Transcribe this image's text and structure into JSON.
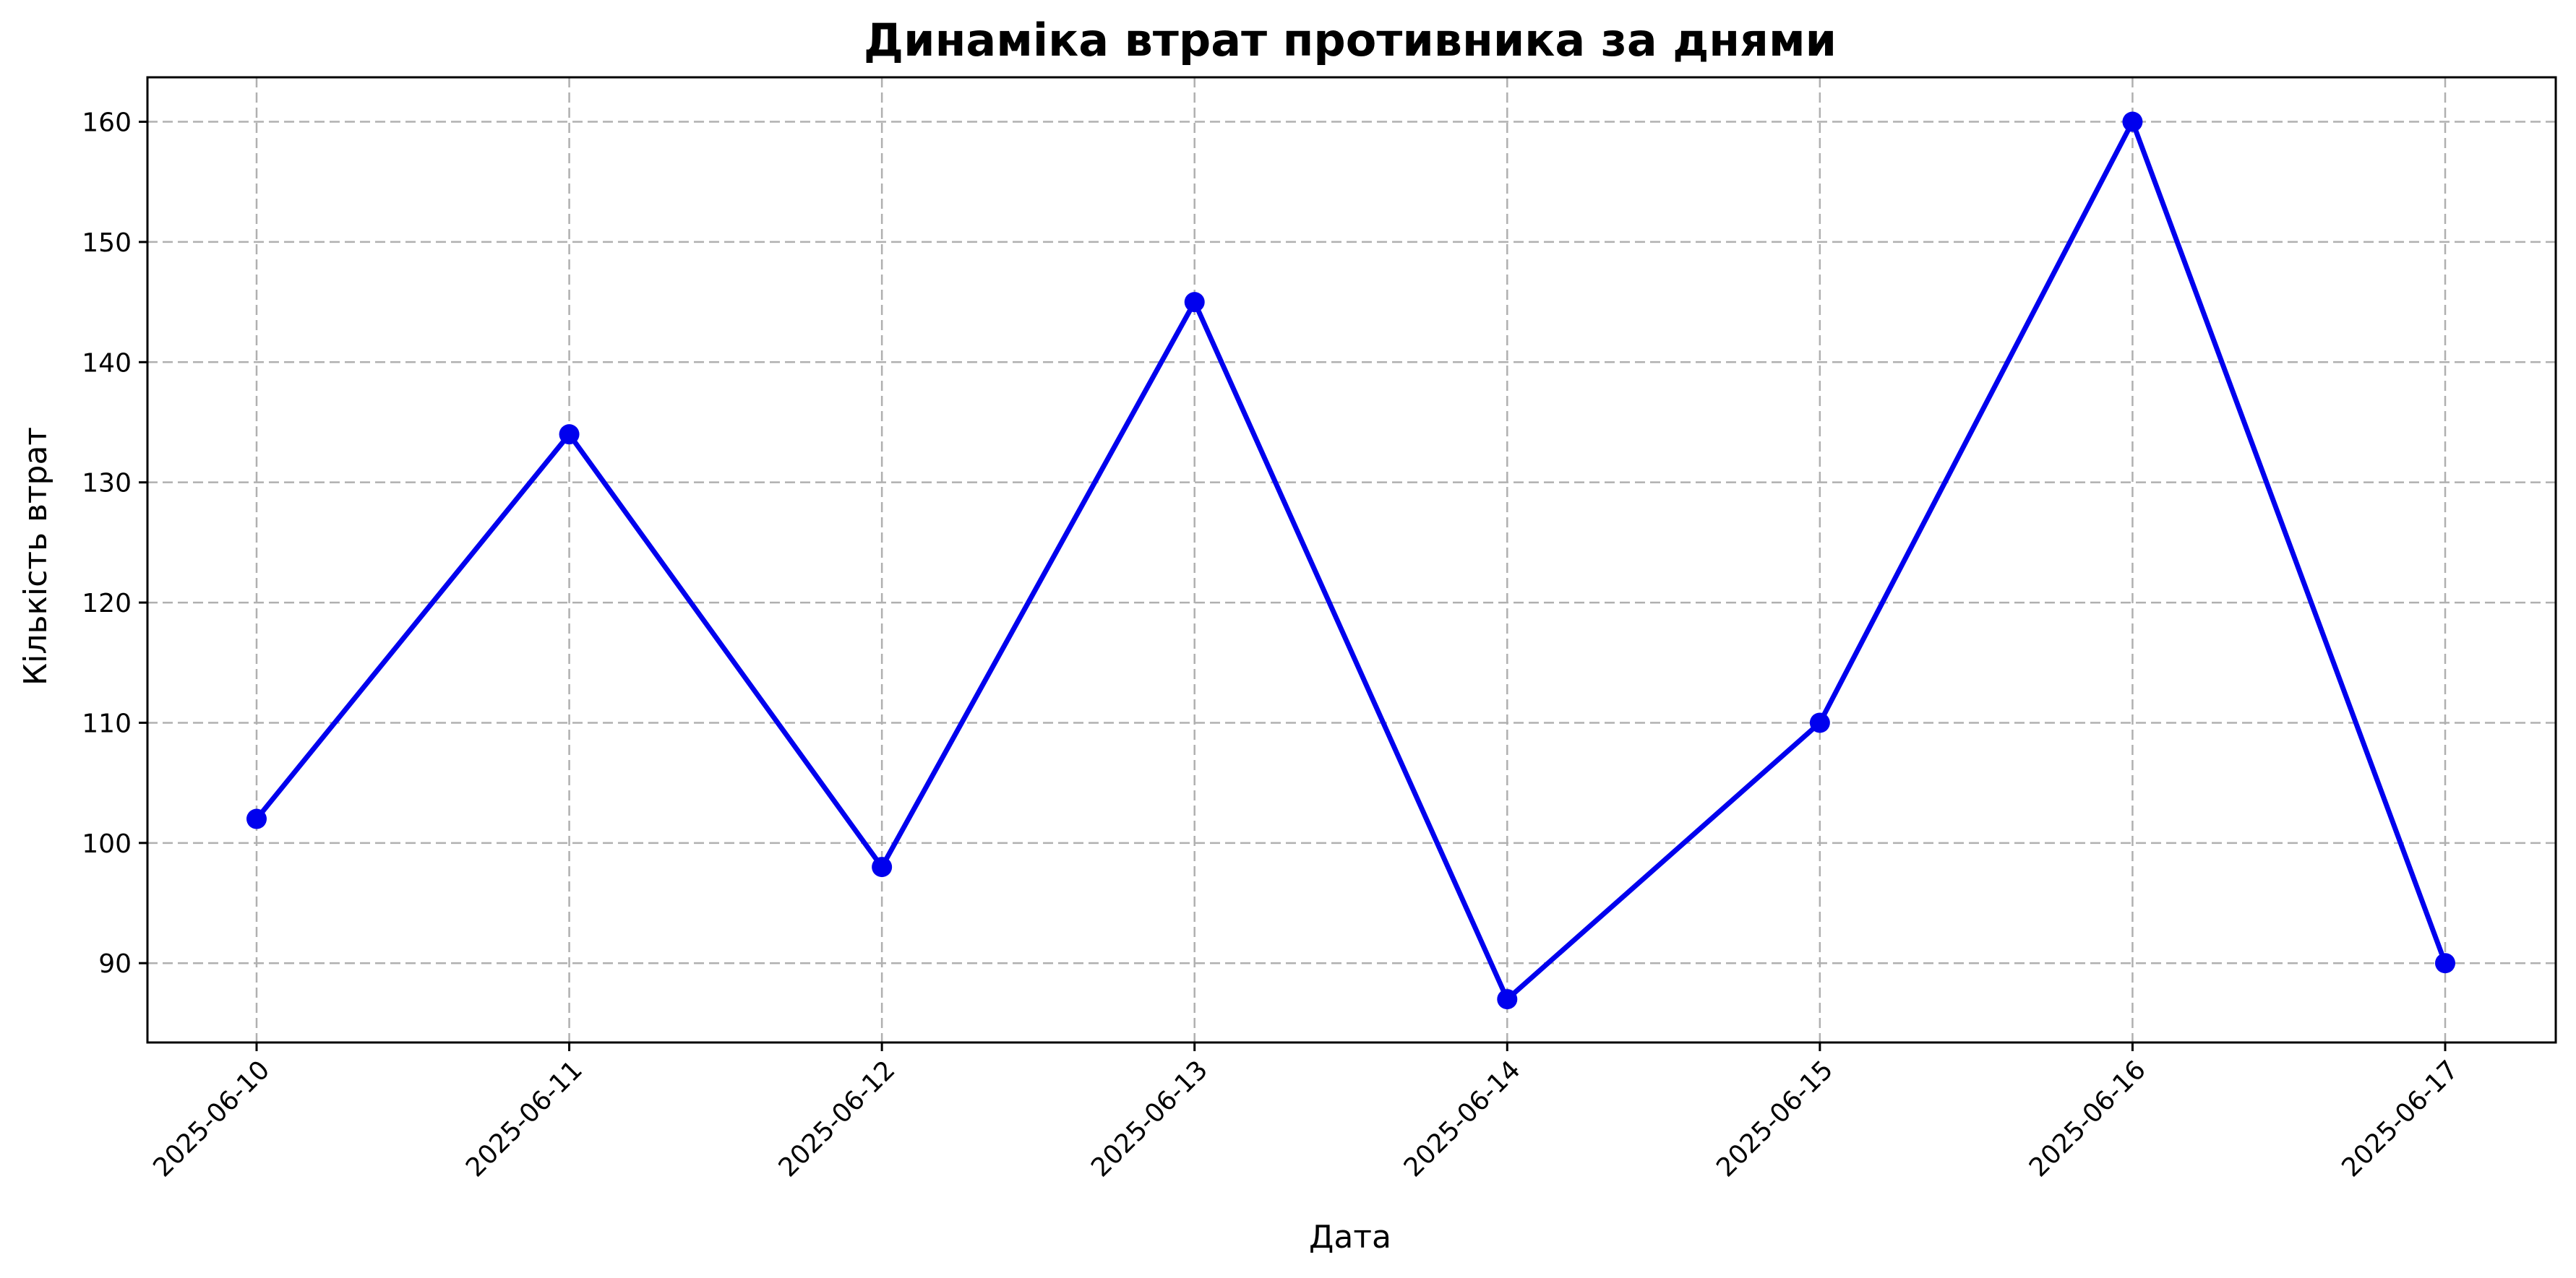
{
  "chart_data": {
    "type": "line",
    "title": "Динаміка втрат противника за днями",
    "xlabel": "Дата",
    "ylabel": "Кількість втрат",
    "x": [
      "2025-06-10",
      "2025-06-11",
      "2025-06-12",
      "2025-06-13",
      "2025-06-14",
      "2025-06-15",
      "2025-06-16",
      "2025-06-17"
    ],
    "series": [
      {
        "values": [
          102,
          134,
          98,
          145,
          87,
          110,
          160,
          90
        ],
        "color": "#0000ee",
        "marker": "circle"
      }
    ],
    "y_ticks": [
      90,
      100,
      110,
      120,
      130,
      140,
      150,
      160
    ],
    "ylim": [
      83.4,
      163.7
    ],
    "grid": true,
    "x_tick_rotation": "45 degrees"
  }
}
